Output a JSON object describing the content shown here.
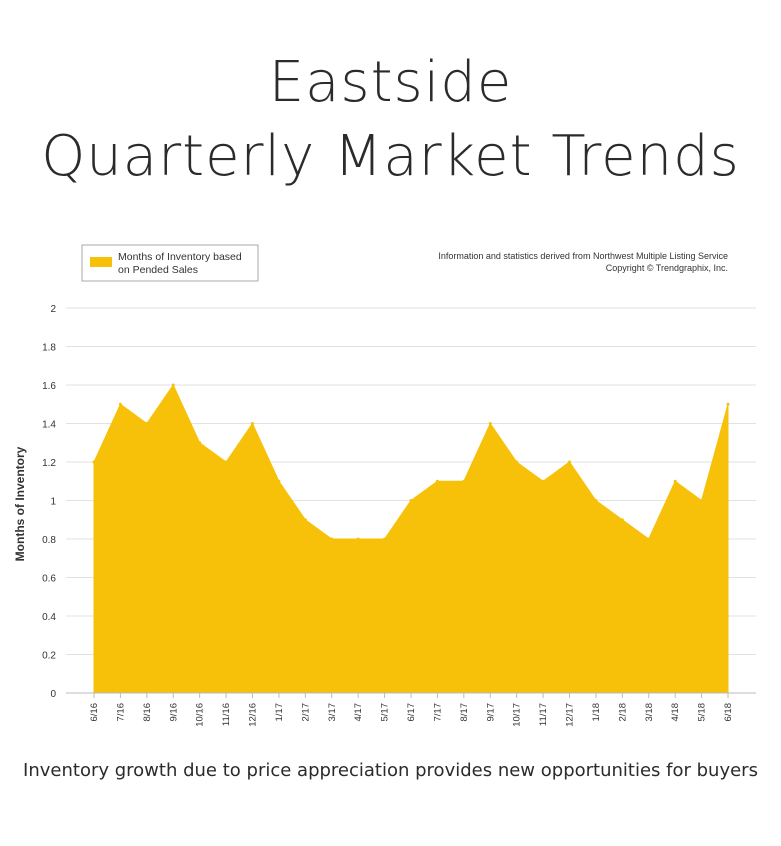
{
  "page": {
    "title_line1": "Eastside",
    "title_line2": "Quarterly Market Trends",
    "caption": "Inventory growth due to price appreciation provides new opportunities for buyers"
  },
  "colors": {
    "fill": "#F6C108",
    "grid": "#e2e2e2",
    "axis": "#bbbbbb",
    "text": "#333333"
  },
  "chart_data": {
    "type": "area",
    "title": "",
    "xlabel": "",
    "ylabel": "Months of Inventory",
    "ylim": [
      0,
      2
    ],
    "yticks": [
      0,
      0.2,
      0.4,
      0.6,
      0.8,
      1,
      1.2,
      1.4,
      1.6,
      1.8,
      2
    ],
    "grid": true,
    "legend_position": "top-left",
    "source_note_line1": "Information and statistics derived from Northwest Multiple Listing Service",
    "source_note_line2": "Copyright © Trendgraphix, Inc.",
    "categories": [
      "6/16",
      "7/16",
      "8/16",
      "9/16",
      "10/16",
      "11/16",
      "12/16",
      "1/17",
      "2/17",
      "3/17",
      "4/17",
      "5/17",
      "6/17",
      "7/17",
      "8/17",
      "9/17",
      "10/17",
      "11/17",
      "12/17",
      "1/18",
      "2/18",
      "3/18",
      "4/18",
      "5/18",
      "6/18"
    ],
    "series": [
      {
        "name": "Months of Inventory based on Pended Sales",
        "values": [
          1.2,
          1.5,
          1.4,
          1.6,
          1.3,
          1.2,
          1.4,
          1.1,
          0.9,
          0.8,
          0.8,
          0.8,
          1.0,
          1.1,
          1.1,
          1.4,
          1.2,
          1.1,
          1.2,
          1.0,
          0.9,
          0.8,
          1.1,
          1.0,
          1.5
        ]
      }
    ]
  }
}
